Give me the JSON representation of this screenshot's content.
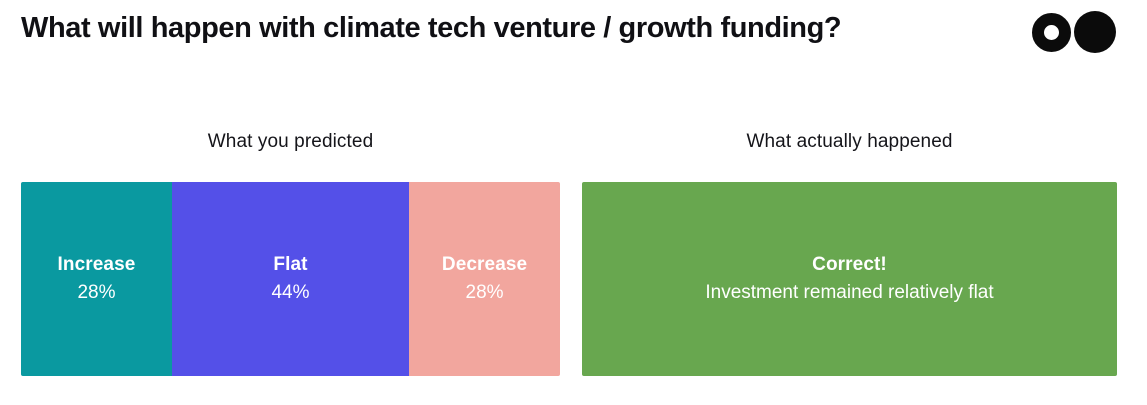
{
  "page": {
    "title": "What will happen with climate tech venture / growth funding?",
    "background": "#ffffff"
  },
  "logo": {
    "ring_color": "#0b0b0b",
    "solid_color": "#0b0b0b"
  },
  "chart_data": {
    "type": "bar",
    "subtype": "horizontal-100pct-stacked",
    "title": "What will happen with climate tech venture / growth funding?",
    "axes": "none",
    "legend_position": "none",
    "grid": false,
    "groups": [
      {
        "label": "What you predicted",
        "segments": [
          {
            "name": "Increase",
            "value_pct": 28,
            "pct_label": "28%",
            "color": "#0a99a0",
            "text_color": "#ffffff"
          },
          {
            "name": "Flat",
            "value_pct": 44,
            "pct_label": "44%",
            "color": "#5450e8",
            "text_color": "#ffffff"
          },
          {
            "name": "Decrease",
            "value_pct": 28,
            "pct_label": "28%",
            "color": "#f2a69e",
            "text_color": "#ffffff"
          }
        ]
      },
      {
        "label": "What actually happened",
        "segments": [
          {
            "name": "Correct!",
            "subtitle": "Investment remained relatively flat",
            "value_pct": 100,
            "color": "#68a74f",
            "text_color": "#ffffff"
          }
        ]
      }
    ]
  }
}
